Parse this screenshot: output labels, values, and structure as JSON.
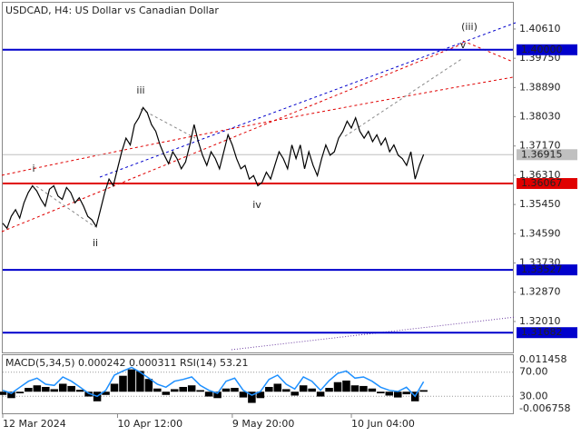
{
  "chart_data": [
    {
      "type": "line",
      "title": "USDCAD, H4:  US Dollar vs Canadian Dollar",
      "color": "#000000",
      "values": [
        1.349,
        1.3475,
        1.351,
        1.353,
        1.3505,
        1.355,
        1.358,
        1.36,
        1.3585,
        1.356,
        1.354,
        1.359,
        1.36,
        1.357,
        1.356,
        1.3595,
        1.358,
        1.355,
        1.3565,
        1.354,
        1.351,
        1.35,
        1.348,
        1.353,
        1.358,
        1.362,
        1.36,
        1.365,
        1.37,
        1.374,
        1.372,
        1.378,
        1.38,
        1.383,
        1.3815,
        1.378,
        1.376,
        1.372,
        1.369,
        1.3665,
        1.37,
        1.368,
        1.365,
        1.367,
        1.372,
        1.378,
        1.373,
        1.369,
        1.366,
        1.37,
        1.368,
        1.365,
        1.37,
        1.375,
        1.372,
        1.368,
        1.365,
        1.366,
        1.362,
        1.363,
        1.36,
        1.361,
        1.364,
        1.362,
        1.366,
        1.37,
        1.368,
        1.365,
        1.372,
        1.368,
        1.372,
        1.365,
        1.37,
        1.366,
        1.363,
        1.368,
        1.372,
        1.369,
        1.37,
        1.374,
        1.376,
        1.379,
        1.377,
        1.38,
        1.376,
        1.374,
        1.376,
        1.373,
        1.375,
        1.372,
        1.374,
        1.37,
        1.372,
        1.369,
        1.368,
        1.366,
        1.37,
        1.362,
        1.366,
        1.3692
      ],
      "xlim": [
        0,
        120
      ],
      "xticks": [
        {
          "value": 0,
          "label": "12 Mar 2024"
        },
        {
          "value": 27,
          "label": "10 Apr 12:00"
        },
        {
          "value": 54,
          "label": "9 May 20:00"
        },
        {
          "value": 82,
          "label": "10 Jun 04:00"
        }
      ],
      "ylim": [
        1.311,
        1.4141
      ],
      "yticks": [
        {
          "value": 1.4061,
          "label": "1.40610"
        },
        {
          "value": 1.3975,
          "label": "1.39750"
        },
        {
          "value": 1.3889,
          "label": "1.38890"
        },
        {
          "value": 1.3803,
          "label": "1.38030"
        },
        {
          "value": 1.3717,
          "label": "1.37170"
        },
        {
          "value": 1.3631,
          "label": "1.36310"
        },
        {
          "value": 1.3545,
          "label": "1.35450"
        },
        {
          "value": 1.3459,
          "label": "1.34590"
        },
        {
          "value": 1.3373,
          "label": "1.33730"
        },
        {
          "value": 1.3287,
          "label": "1.32870"
        },
        {
          "value": 1.3201,
          "label": "1.32010"
        }
      ],
      "levels": [
        {
          "value": 1.4,
          "label": "1.40000",
          "color": "#0000cc"
        },
        {
          "value": 1.36915,
          "label": "1.36915",
          "color": "#c0c0c0"
        },
        {
          "value": 1.36067,
          "label": "1.36067",
          "color": "#e00000"
        },
        {
          "value": 1.33527,
          "label": "1.33527",
          "color": "#0000cc"
        },
        {
          "value": 1.31682,
          "label": "1.31682",
          "color": "#0000cc"
        }
      ],
      "annotations": [
        "i",
        "ii",
        "iii",
        "iv",
        "(iii)",
        "v"
      ]
    },
    {
      "type": "macd",
      "title": "MACD(5,34,5) 0.000242 0.000311 RSI(14) 53.21",
      "series": [
        {
          "color": "#000000",
          "values": [
            -0.001,
            -0.002,
            -0.0005,
            0.0012,
            0.002,
            0.0015,
            0.0008,
            0.0025,
            0.0018,
            0.0006,
            -0.0015,
            -0.003,
            -0.001,
            0.0025,
            0.005,
            0.007,
            0.0065,
            0.004,
            0.001,
            -0.001,
            0.0008,
            0.0015,
            0.002,
            0.0005,
            -0.0015,
            -0.002,
            0.001,
            0.0012,
            -0.0018,
            -0.0035,
            -0.002,
            0.0015,
            0.0025,
            0.0008,
            -0.0012,
            0.002,
            0.001,
            -0.0015,
            0.0012,
            0.003,
            0.0035,
            0.002,
            0.0018,
            0.001,
            -0.0005,
            -0.0012,
            -0.0018,
            -0.0008,
            -0.003,
            0.0005
          ]
        },
        {
          "color": "#1e90ff",
          "axis": "y2",
          "values": [
            40,
            35,
            45,
            55,
            60,
            50,
            48,
            62,
            55,
            45,
            35,
            30,
            40,
            65,
            72,
            78,
            70,
            60,
            50,
            45,
            55,
            58,
            62,
            48,
            40,
            35,
            55,
            60,
            40,
            32,
            38,
            58,
            65,
            50,
            42,
            62,
            55,
            40,
            56,
            68,
            72,
            60,
            62,
            55,
            45,
            40,
            38,
            45,
            30,
            54
          ]
        }
      ],
      "ylim": [
        -0.006758,
        0.011458
      ],
      "yticks": [
        0.011458,
        -0.006758
      ],
      "y2lim": [
        1.9,
        98.1
      ],
      "y2ticks": [
        {
          "value": 70,
          "label": "70.00"
        },
        {
          "value": 30,
          "label": "30.00"
        }
      ]
    }
  ]
}
